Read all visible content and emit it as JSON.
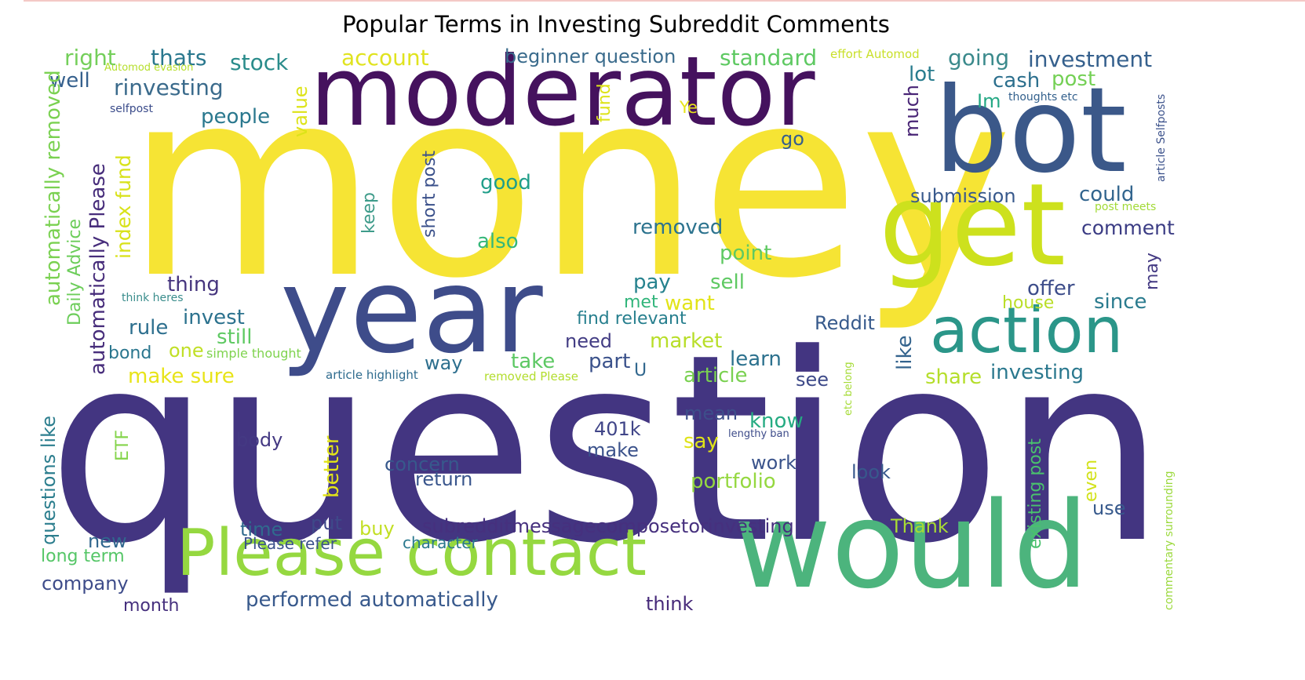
{
  "title": "Popular Terms in Investing Subreddit Comments",
  "colors": {
    "background": "#ffffff",
    "palette": "viridis",
    "title": "#000000"
  },
  "words": [
    {
      "text": "question",
      "color": "#433581"
    },
    {
      "text": "money",
      "color": "#f6e434"
    },
    {
      "text": "moderator",
      "color": "#45125e"
    },
    {
      "text": "year",
      "color": "#3e4c8a"
    },
    {
      "text": "bot",
      "color": "#3b5889"
    },
    {
      "text": "get",
      "color": "#cde11d"
    },
    {
      "text": "would",
      "color": "#4cb47d"
    },
    {
      "text": "action",
      "color": "#2b9689"
    },
    {
      "text": "Please contact",
      "color": "#95d840"
    },
    {
      "text": "right",
      "color": "#74cf5a"
    },
    {
      "text": "thats",
      "color": "#2a788e"
    },
    {
      "text": "stock",
      "color": "#2a8c8b"
    },
    {
      "text": "account",
      "color": "#e0e31f"
    },
    {
      "text": "beginner question",
      "color": "#3a6b8c"
    },
    {
      "text": "standard",
      "color": "#5ec962"
    },
    {
      "text": "effort Automod",
      "color": "#c9e02a"
    },
    {
      "text": "going",
      "color": "#3b8a8c"
    },
    {
      "text": "investment",
      "color": "#35608d"
    },
    {
      "text": "well",
      "color": "#35608d"
    },
    {
      "text": "Automod evasion",
      "color": "#b5de2b"
    },
    {
      "text": "rinvesting",
      "color": "#3b6b8c"
    },
    {
      "text": "lot",
      "color": "#287c8e"
    },
    {
      "text": "cash",
      "color": "#2d708e"
    },
    {
      "text": "post",
      "color": "#74d055"
    },
    {
      "text": "selfpost",
      "color": "#3a4b8a"
    },
    {
      "text": "thoughts etc",
      "color": "#34618d"
    },
    {
      "text": "Im",
      "color": "#24a884"
    },
    {
      "text": "Ye",
      "color": "#e7e419"
    },
    {
      "text": "people",
      "color": "#2a788e"
    },
    {
      "text": "value",
      "color": "#dde318"
    },
    {
      "text": "fund",
      "color": "#dde318"
    },
    {
      "text": "go",
      "color": "#355e8d"
    },
    {
      "text": "much",
      "color": "#482475"
    },
    {
      "text": "article Selfposts",
      "color": "#3b518b"
    },
    {
      "text": "automatically Please",
      "color": "#472d7b"
    },
    {
      "text": "automatically removed",
      "color": "#7ad151"
    },
    {
      "text": "Daily Advice",
      "color": "#6ccd5a"
    },
    {
      "text": "index fund",
      "color": "#d8e219"
    },
    {
      "text": "short post",
      "color": "#3b518b"
    },
    {
      "text": "keep",
      "color": "#3e9b8a"
    },
    {
      "text": "good",
      "color": "#1f9e89"
    },
    {
      "text": "submission",
      "color": "#38598c"
    },
    {
      "text": "could",
      "color": "#32658e"
    },
    {
      "text": "comment",
      "color": "#3b3c84"
    },
    {
      "text": "post meets",
      "color": "#a2da37"
    },
    {
      "text": "also",
      "color": "#35b779"
    },
    {
      "text": "removed",
      "color": "#2c738e"
    },
    {
      "text": "point",
      "color": "#5ec962"
    },
    {
      "text": "thing",
      "color": "#46357e"
    },
    {
      "text": "pay",
      "color": "#26828e"
    },
    {
      "text": "sell",
      "color": "#5ec962"
    },
    {
      "text": "may",
      "color": "#443a83"
    },
    {
      "text": "offer",
      "color": "#3d4d8a"
    },
    {
      "text": "think heres",
      "color": "#3a8d8c"
    },
    {
      "text": "met",
      "color": "#31b57b"
    },
    {
      "text": "want",
      "color": "#e2e418"
    },
    {
      "text": "house",
      "color": "#bade28"
    },
    {
      "text": "since",
      "color": "#2a7b8e"
    },
    {
      "text": "rule",
      "color": "#2d6f8e"
    },
    {
      "text": "invest",
      "color": "#2c728e"
    },
    {
      "text": "find relevant",
      "color": "#277f8e"
    },
    {
      "text": "Reddit",
      "color": "#375a8c"
    },
    {
      "text": "still",
      "color": "#5ec962"
    },
    {
      "text": "need",
      "color": "#433d84"
    },
    {
      "text": "market",
      "color": "#b8de29"
    },
    {
      "text": "like",
      "color": "#33638d"
    },
    {
      "text": "bond",
      "color": "#2a768e"
    },
    {
      "text": "one",
      "color": "#c0df25"
    },
    {
      "text": "simple thought",
      "color": "#7fd34e"
    },
    {
      "text": "way",
      "color": "#2d6f8e"
    },
    {
      "text": "take",
      "color": "#5cc863"
    },
    {
      "text": "part",
      "color": "#3b528b"
    },
    {
      "text": "learn",
      "color": "#2c718e"
    },
    {
      "text": "make sure",
      "color": "#e8e419"
    },
    {
      "text": "article highlight",
      "color": "#2e6b8e"
    },
    {
      "text": "removed Please",
      "color": "#b2dd2d"
    },
    {
      "text": "U",
      "color": "#31678e"
    },
    {
      "text": "article",
      "color": "#7ad151"
    },
    {
      "text": "see",
      "color": "#3e4a89"
    },
    {
      "text": "share",
      "color": "#b5de2b"
    },
    {
      "text": "investing",
      "color": "#2a788e"
    },
    {
      "text": "etc belong",
      "color": "#a5db36"
    },
    {
      "text": "questions like",
      "color": "#2c7e8e"
    },
    {
      "text": "ETF",
      "color": "#84d44b"
    },
    {
      "text": "mean",
      "color": "#3d4e8a"
    },
    {
      "text": "know",
      "color": "#25ab82"
    },
    {
      "text": "existing post",
      "color": "#4ac16d"
    },
    {
      "text": "even",
      "color": "#d2e21b"
    },
    {
      "text": "body",
      "color": "#443983"
    },
    {
      "text": "401k",
      "color": "#404588"
    },
    {
      "text": "say",
      "color": "#dfe318"
    },
    {
      "text": "lengthy ban",
      "color": "#3e4c8a"
    },
    {
      "text": "make",
      "color": "#3b528b"
    },
    {
      "text": "work",
      "color": "#3a538b"
    },
    {
      "text": "better",
      "color": "#e2e418"
    },
    {
      "text": "concern",
      "color": "#37598c"
    },
    {
      "text": "look",
      "color": "#38588c"
    },
    {
      "text": "return",
      "color": "#39558c"
    },
    {
      "text": "portfolio",
      "color": "#95d840"
    },
    {
      "text": "commentary surrounding",
      "color": "#9bd93c"
    },
    {
      "text": "use",
      "color": "#37598c"
    },
    {
      "text": "time",
      "color": "#306a8e"
    },
    {
      "text": "put",
      "color": "#3e4989"
    },
    {
      "text": "buy",
      "color": "#c2df23"
    },
    {
      "text": "subredditmessagecomposetorinvesting",
      "color": "#46307e"
    },
    {
      "text": "Thank",
      "color": "#a8db34"
    },
    {
      "text": "new",
      "color": "#31678e"
    },
    {
      "text": "Please refer",
      "color": "#3b528b"
    },
    {
      "text": "character",
      "color": "#2a788e"
    },
    {
      "text": "long term",
      "color": "#55c667"
    },
    {
      "text": "company",
      "color": "#3e4c8a"
    },
    {
      "text": "performed automatically",
      "color": "#38598c"
    },
    {
      "text": "think",
      "color": "#472a7a"
    },
    {
      "text": "month",
      "color": "#46307e"
    }
  ]
}
